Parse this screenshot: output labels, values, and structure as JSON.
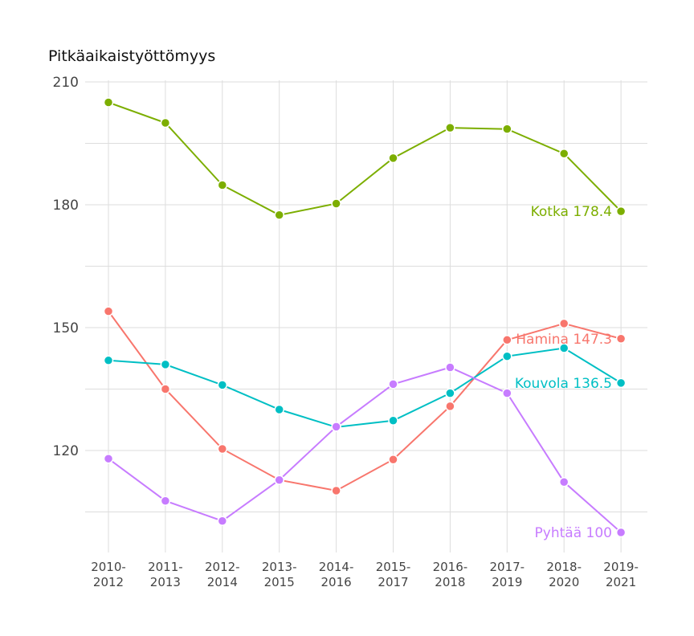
{
  "chart_data": {
    "type": "line",
    "title": "Pitkäaikaistyöttömyys",
    "xlabel": "",
    "ylabel": "",
    "categories": [
      [
        "2010-",
        "2012"
      ],
      [
        "2011-",
        "2013"
      ],
      [
        "2012-",
        "2014"
      ],
      [
        "2013-",
        "2015"
      ],
      [
        "2014-",
        "2016"
      ],
      [
        "2015-",
        "2017"
      ],
      [
        "2016-",
        "2018"
      ],
      [
        "2017-",
        "2019"
      ],
      [
        "2018-",
        "2020"
      ],
      [
        "2019-",
        "2021"
      ]
    ],
    "yticks": [
      120,
      150,
      180,
      210
    ],
    "ylim": [
      105,
      210
    ],
    "grid": true,
    "legend": "end-labels",
    "series": [
      {
        "name": "Kotka",
        "color": "#7CAE00",
        "end_label": "Kotka 178.4",
        "values": [
          205,
          200,
          184.8,
          177.5,
          180.3,
          191.4,
          198.8,
          198.5,
          192.5,
          178.4
        ]
      },
      {
        "name": "Hamina",
        "color": "#F8766D",
        "end_label": "Hamina 147.3",
        "values": [
          154,
          135,
          120.4,
          112.8,
          110.2,
          117.8,
          130.8,
          147,
          151,
          147.3
        ]
      },
      {
        "name": "Kouvola",
        "color": "#00BFC4",
        "end_label": "Kouvola 136.5",
        "values": [
          142,
          141,
          136,
          130,
          125.7,
          127.3,
          134,
          143,
          145,
          136.5
        ]
      },
      {
        "name": "Pyhtää",
        "color": "#C77CFF",
        "end_label": "Pyhtää 100",
        "values": [
          118,
          107.7,
          102.8,
          112.8,
          125.8,
          136.2,
          140.3,
          134,
          112.3,
          100
        ]
      }
    ]
  }
}
